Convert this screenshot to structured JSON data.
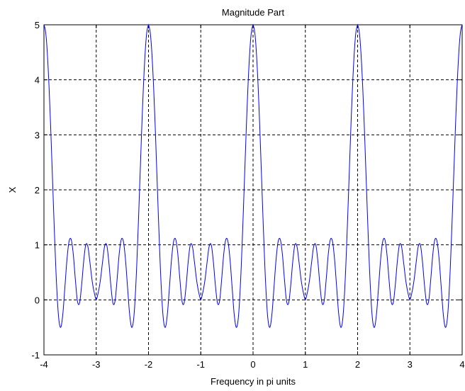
{
  "chart_data": {
    "type": "line",
    "title": "Magnitude Part",
    "xlabel": "Frequency in pi units",
    "ylabel": "X",
    "xlim": [
      -4,
      4
    ],
    "ylim": [
      -1,
      5
    ],
    "xticks": [
      -4,
      -3,
      -2,
      -1,
      0,
      1,
      2,
      3,
      4
    ],
    "yticks": [
      -1,
      0,
      1,
      2,
      3,
      4,
      5
    ],
    "xtick_labels": [
      "-4",
      "-3",
      "-2",
      "-1",
      "0",
      "1",
      "2",
      "3",
      "4"
    ],
    "ytick_labels": [
      "-1",
      "0",
      "1",
      "2",
      "3",
      "4",
      "5"
    ],
    "grid": true,
    "line_color": "#0000ff",
    "period": 2,
    "series": [
      {
        "x": [
          0,
          0.04,
          0.08,
          0.12,
          0.16,
          0.2,
          0.24,
          0.28,
          0.32,
          0.36,
          0.4,
          0.44,
          0.48,
          0.52,
          0.56,
          0.6,
          0.64,
          0.68,
          0.72,
          0.76,
          0.8,
          0.84,
          0.88,
          0.92,
          0.96,
          1.0
        ],
        "values": [
          5.0,
          4.8,
          4.22,
          3.35,
          2.3,
          1.24,
          0.31,
          -0.31,
          -0.5,
          -0.27,
          0.22,
          0.73,
          1.06,
          1.1,
          0.84,
          0.38,
          -0.02,
          -0.06,
          0.26,
          0.7,
          1.0,
          0.97,
          0.68,
          0.36,
          0.14,
          0.0
        ]
      }
    ]
  }
}
